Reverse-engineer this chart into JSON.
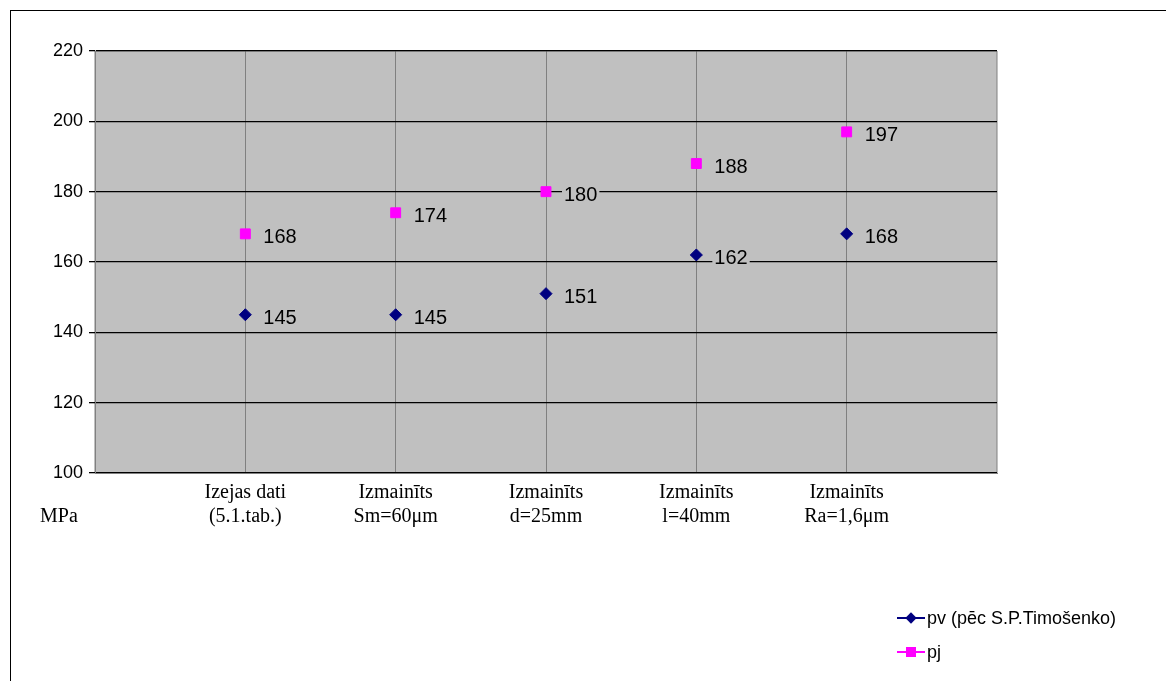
{
  "chart_data": {
    "type": "scatter",
    "ylabel": "MPa",
    "categories": [
      "Izejas dati\n(5.1.tab.)",
      "Izmainīts\nSm=60μm",
      "Izmainīts\nd=25mm",
      "Izmainīts\nl=40mm",
      "Izmainīts\nRa=1,6μm"
    ],
    "series": [
      {
        "name": "pv (pēc S.P.Timošenko)",
        "color": "#000080",
        "marker": "diamond",
        "values": [
          145,
          145,
          151,
          162,
          168
        ]
      },
      {
        "name": "pj",
        "color": "#ff00ff",
        "marker": "square",
        "values": [
          168,
          174,
          180,
          188,
          197
        ]
      }
    ],
    "ylim": [
      100,
      220
    ],
    "yticks": [
      100,
      120,
      140,
      160,
      180,
      200,
      220
    ],
    "grid": true,
    "legend": "bottom right",
    "data_labels": true
  }
}
